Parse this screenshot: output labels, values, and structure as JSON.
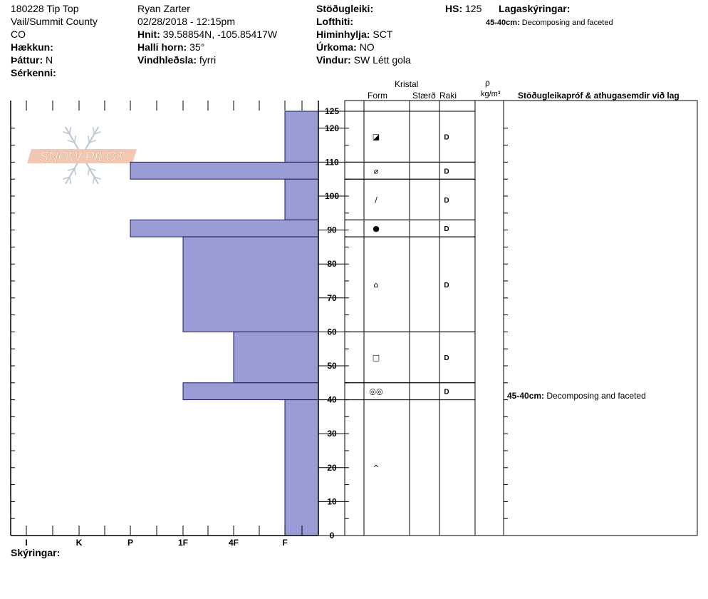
{
  "header": {
    "col1": [
      "180228 Tip Top",
      "Vail/Summit County",
      "CO"
    ],
    "hakkun_label": "Hækkun:",
    "thattur_label": "Þáttur:",
    "thattur_value": "N",
    "serkenni_label": "Sérkenni:",
    "observer": "Ryan Zarter",
    "datetime": "02/28/2018 - 12:15pm",
    "hnit_label": "Hnit:",
    "hnit_value": "39.58854N, -105.85417W",
    "halli_label": "Halli horn:",
    "halli_value": "35°",
    "vindhledsla_label": "Vindhleðsla:",
    "vindhledsla_value": "fyrri",
    "stodugleiki_label": "Stöðugleiki:",
    "lofthiti_label": "Lofthiti:",
    "himinhylja_label": "Himinhylja:",
    "himinhylja_value": "SCT",
    "urkoma_label": "Úrkoma:",
    "urkoma_value": "NO",
    "vindur_label": "Vindur:",
    "vindur_value": "SW Létt gola",
    "hs_label": "HS:",
    "hs_value": "125",
    "lagaskyringar_label": "Lagaskýringar:",
    "lagaskyringar_depth": "45-40cm:",
    "lagaskyringar_text": "Decomposing and faceted"
  },
  "logo_text": "SNOW PILOT",
  "columns": {
    "kristal": "Kristal",
    "form": "Form",
    "staerd": "Stærð",
    "raki": "Raki",
    "rho": "ρ",
    "density_unit": "kg/m³",
    "comments": "Stöðugleikapróf & athugasemdir við lag"
  },
  "footer": {
    "skyringar_label": "Skýringar:"
  },
  "chart_data": {
    "type": "bar",
    "orientation": "horizontal",
    "y_axis": {
      "range": [
        0,
        125
      ],
      "ticks": [
        0,
        10,
        20,
        30,
        40,
        50,
        60,
        70,
        80,
        90,
        100,
        110,
        120,
        125
      ],
      "unit": "cm"
    },
    "x_axis": {
      "hardness_ticks": [
        "I",
        "K",
        "P",
        "1F",
        "4F",
        "F"
      ],
      "reversed": true
    },
    "layers": [
      {
        "top": 125,
        "bottom": 110,
        "hardness": "F",
        "form": "◪",
        "moisture": "D"
      },
      {
        "top": 110,
        "bottom": 105,
        "hardness": "P",
        "form": "⌀",
        "moisture": "D"
      },
      {
        "top": 105,
        "bottom": 93,
        "hardness": "F",
        "form": "/",
        "moisture": "D"
      },
      {
        "top": 93,
        "bottom": 88,
        "hardness": "P",
        "form": "●",
        "moisture": "D"
      },
      {
        "top": 88,
        "bottom": 60,
        "hardness": "1F",
        "form": "⌂",
        "moisture": "D"
      },
      {
        "top": 60,
        "bottom": 45,
        "hardness": "4F",
        "form": "□",
        "moisture": "D"
      },
      {
        "top": 45,
        "bottom": 40,
        "hardness": "1F",
        "form": "◎◎",
        "moisture": "D"
      },
      {
        "top": 40,
        "bottom": 0,
        "hardness": "F",
        "form": "^",
        "moisture": ""
      }
    ],
    "annotations": [
      {
        "depth_label": "45-40cm:",
        "text": "Decomposing and faceted"
      }
    ]
  }
}
